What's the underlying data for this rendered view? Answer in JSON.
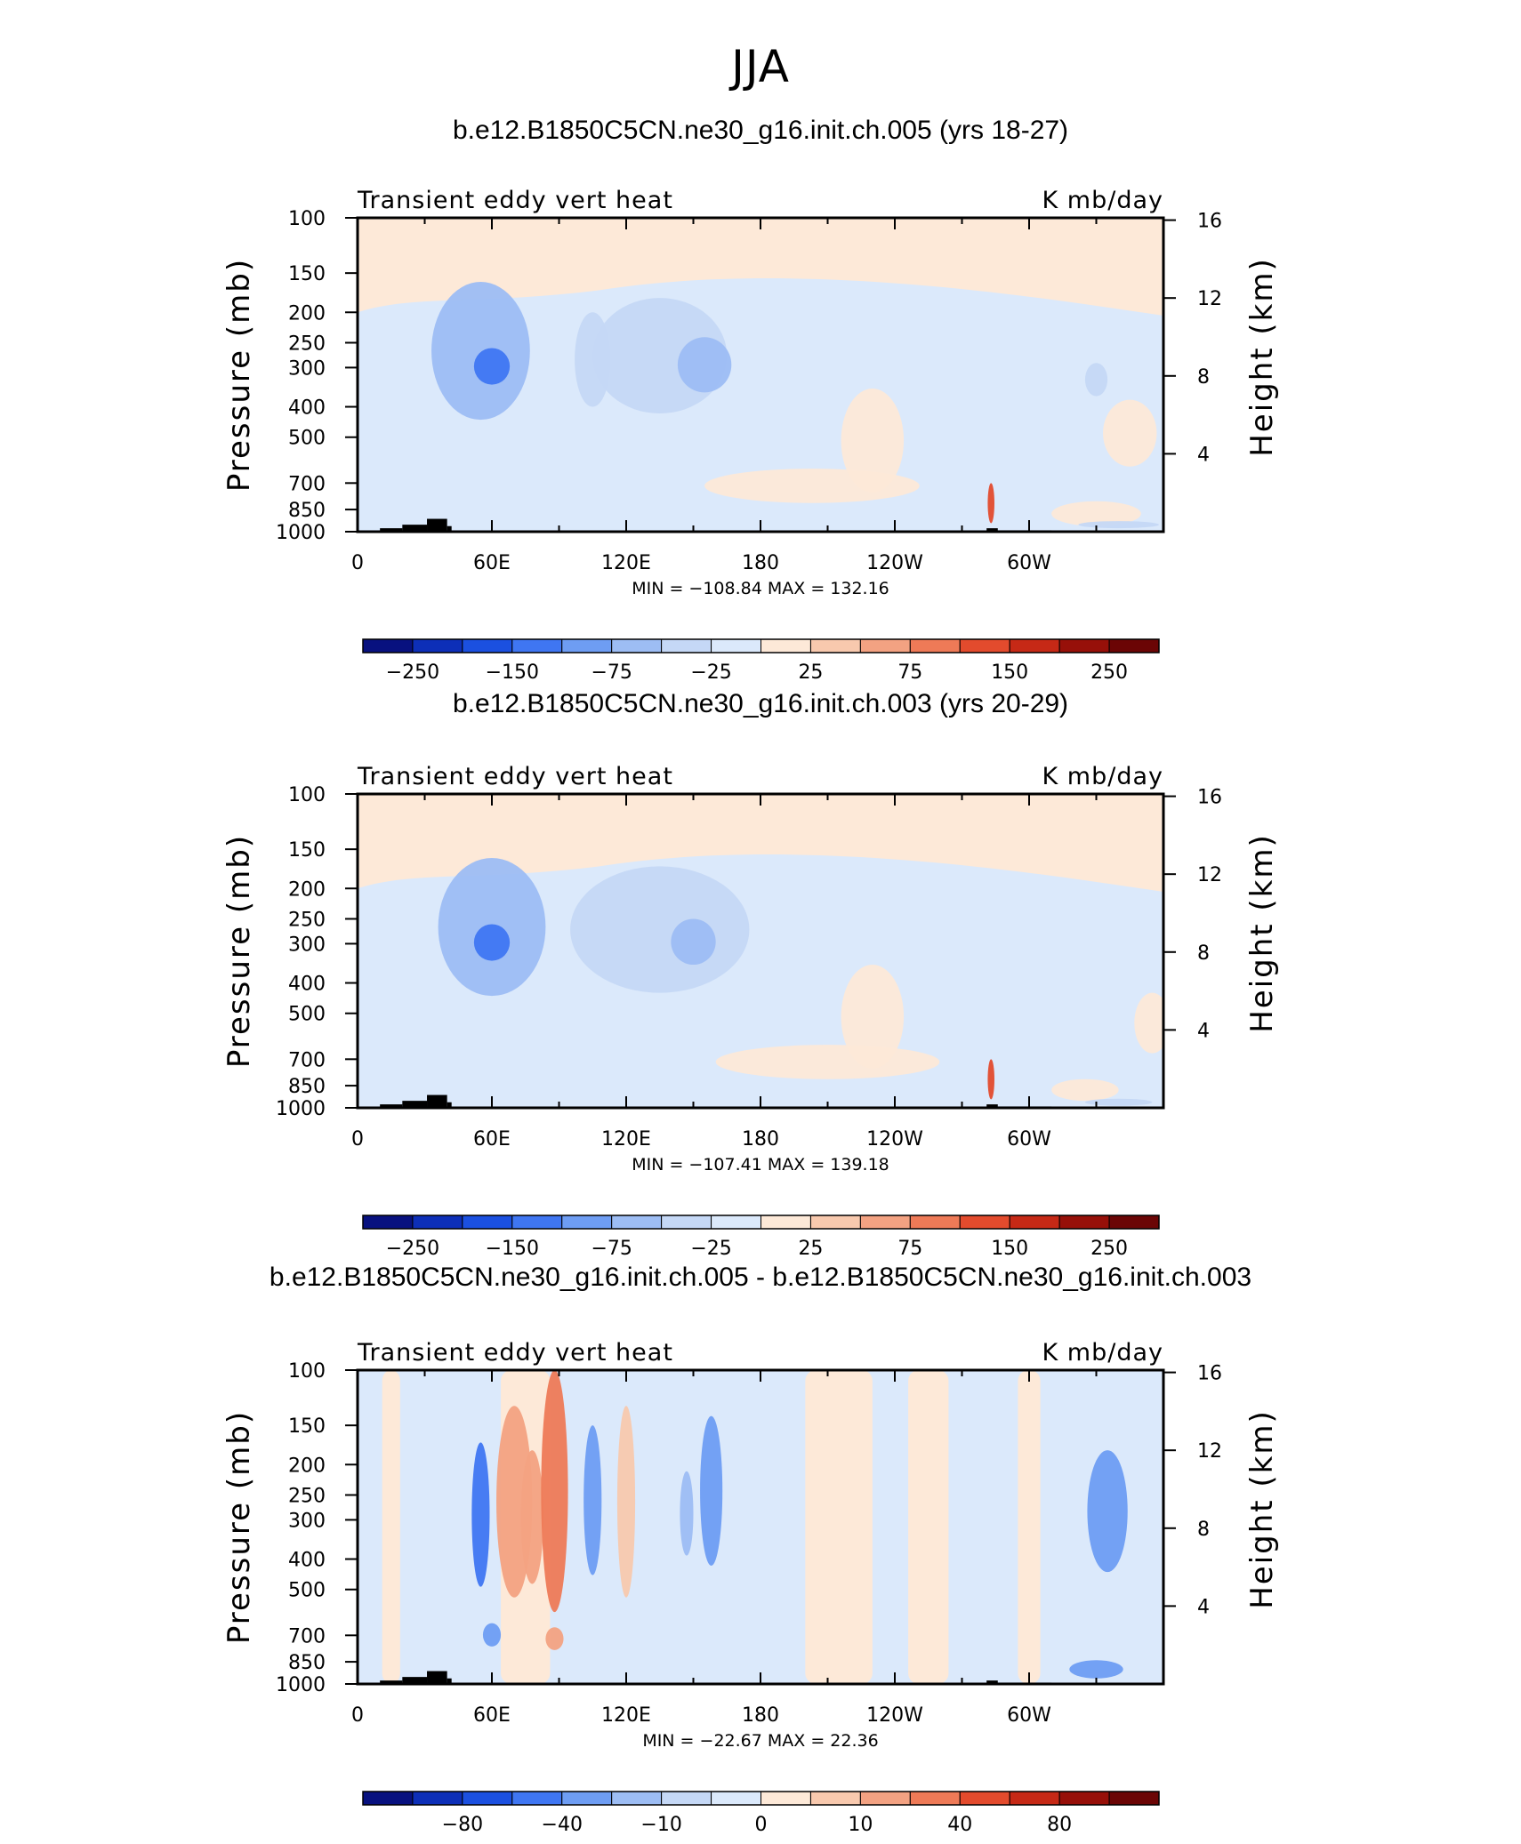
{
  "figure": {
    "title": "JJA"
  },
  "palettes": {
    "abs": [
      "#08117f",
      "#0d2fb8",
      "#1b50e0",
      "#3f76f2",
      "#6e9df3",
      "#9dbdf4",
      "#c5d8f6",
      "#dbe9fb",
      "#fde9d8",
      "#f8c9ae",
      "#f3a282",
      "#ee7a57",
      "#e34b2d",
      "#c62916",
      "#971009",
      "#6b0505"
    ],
    "diff": [
      "#08117f",
      "#0d2fb8",
      "#1b50e0",
      "#3f76f2",
      "#6e9df3",
      "#9dbdf4",
      "#c5d8f6",
      "#dbe9fb",
      "#fde9d8",
      "#f8c9ae",
      "#f3a282",
      "#ee7a57",
      "#e34b2d",
      "#c62916",
      "#971009",
      "#6b0505"
    ]
  },
  "chart_data": [
    {
      "type": "heatmap",
      "title": "b.e12.B1850C5CN.ne30_g16.init.ch.005 (yrs 18-27)",
      "left_label": "Transient eddy vert heat",
      "right_label": "K mb/day",
      "ylabel": "Pressure (mb)",
      "ylabel_right": "Height (km)",
      "x_ticks": [
        "0",
        "60E",
        "120E",
        "180",
        "120W",
        "60W"
      ],
      "x_tick_lons": [
        0,
        60,
        120,
        180,
        240,
        300
      ],
      "y_ticks": [
        100,
        150,
        200,
        250,
        300,
        400,
        500,
        700,
        850,
        1000
      ],
      "y_ticks_right": [
        16,
        12,
        8,
        4
      ],
      "ylim": [
        1000,
        100
      ],
      "xlim": [
        0,
        360
      ],
      "minmax": "MIN = −108.84   MAX = 132.16",
      "colorbar_labels": [
        "−250",
        "−150",
        "−75",
        "−25",
        "25",
        "75",
        "150",
        "250"
      ],
      "palette": "abs",
      "features": [
        {
          "lon": 55,
          "p": 300,
          "value": -70,
          "rx": 22,
          "ry": 140
        },
        {
          "lon": 60,
          "p": 300,
          "value": -108.84,
          "rx": 8,
          "ry": 40
        },
        {
          "lon": 105,
          "p": 300,
          "value": -30,
          "rx": 8,
          "ry": 100
        },
        {
          "lon": 135,
          "p": 300,
          "value": -40,
          "rx": 30,
          "ry": 120
        },
        {
          "lon": 155,
          "p": 300,
          "value": -60,
          "rx": 12,
          "ry": 60
        },
        {
          "lon": 203,
          "p": 720,
          "value": 20,
          "rx": 48,
          "ry": 90
        },
        {
          "lon": 230,
          "p": 550,
          "value": 18,
          "rx": 14,
          "ry": 200
        },
        {
          "lon": 283,
          "p": 820,
          "value": 132.16,
          "rx": 1.5,
          "ry": 120
        },
        {
          "lon": 330,
          "p": 880,
          "value": 15,
          "rx": 20,
          "ry": 80
        },
        {
          "lon": 345,
          "p": 500,
          "value": 15,
          "rx": 12,
          "ry": 120
        },
        {
          "lon": 330,
          "p": 330,
          "value": -30,
          "rx": 5,
          "ry": 40
        },
        {
          "lon": 340,
          "p": 950,
          "value": -30,
          "rx": 18,
          "ry": 20
        }
      ],
      "topography": [
        {
          "lon0": 10,
          "lon1": 20,
          "p": 975
        },
        {
          "lon0": 20,
          "lon1": 31,
          "p": 950
        },
        {
          "lon0": 31,
          "lon1": 40,
          "p": 910
        },
        {
          "lon0": 40,
          "lon1": 42,
          "p": 960
        },
        {
          "lon0": 281,
          "lon1": 286,
          "p": 975
        },
        {
          "lon0": 286,
          "lon1": 310,
          "p": 990
        }
      ]
    },
    {
      "type": "heatmap",
      "title": "b.e12.B1850C5CN.ne30_g16.init.ch.003 (yrs 20-29)",
      "left_label": "Transient eddy vert heat",
      "right_label": "K mb/day",
      "ylabel": "Pressure (mb)",
      "ylabel_right": "Height (km)",
      "x_ticks": [
        "0",
        "60E",
        "120E",
        "180",
        "120W",
        "60W"
      ],
      "x_tick_lons": [
        0,
        60,
        120,
        180,
        240,
        300
      ],
      "y_ticks": [
        100,
        150,
        200,
        250,
        300,
        400,
        500,
        700,
        850,
        1000
      ],
      "y_ticks_right": [
        16,
        12,
        8,
        4
      ],
      "ylim": [
        1000,
        100
      ],
      "xlim": [
        0,
        360
      ],
      "minmax": "MIN = −107.41   MAX = 139.18",
      "colorbar_labels": [
        "−250",
        "−150",
        "−75",
        "−25",
        "25",
        "75",
        "150",
        "250"
      ],
      "palette": "abs",
      "features": [
        {
          "lon": 60,
          "p": 300,
          "value": -70,
          "rx": 24,
          "ry": 140
        },
        {
          "lon": 60,
          "p": 300,
          "value": -107.41,
          "rx": 8,
          "ry": 40
        },
        {
          "lon": 135,
          "p": 300,
          "value": -45,
          "rx": 40,
          "ry": 130
        },
        {
          "lon": 150,
          "p": 300,
          "value": -60,
          "rx": 10,
          "ry": 50
        },
        {
          "lon": 210,
          "p": 720,
          "value": 20,
          "rx": 50,
          "ry": 90
        },
        {
          "lon": 230,
          "p": 550,
          "value": 18,
          "rx": 14,
          "ry": 200
        },
        {
          "lon": 283,
          "p": 820,
          "value": 139.18,
          "rx": 1.5,
          "ry": 120
        },
        {
          "lon": 325,
          "p": 880,
          "value": 15,
          "rx": 15,
          "ry": 70
        },
        {
          "lon": 355,
          "p": 550,
          "value": 15,
          "rx": 8,
          "ry": 120
        },
        {
          "lon": 340,
          "p": 960,
          "value": -30,
          "rx": 15,
          "ry": 15
        }
      ],
      "topography": [
        {
          "lon0": 10,
          "lon1": 20,
          "p": 975
        },
        {
          "lon0": 20,
          "lon1": 31,
          "p": 950
        },
        {
          "lon0": 31,
          "lon1": 40,
          "p": 910
        },
        {
          "lon0": 40,
          "lon1": 42,
          "p": 960
        },
        {
          "lon0": 281,
          "lon1": 286,
          "p": 975
        },
        {
          "lon0": 286,
          "lon1": 310,
          "p": 990
        }
      ]
    },
    {
      "type": "heatmap",
      "title": "b.e12.B1850C5CN.ne30_g16.init.ch.005 - b.e12.B1850C5CN.ne30_g16.init.ch.003",
      "left_label": "Transient eddy vert heat",
      "right_label": "K mb/day",
      "ylabel": "Pressure (mb)",
      "ylabel_right": "Height (km)",
      "x_ticks": [
        "0",
        "60E",
        "120E",
        "180",
        "120W",
        "60W"
      ],
      "x_tick_lons": [
        0,
        60,
        120,
        180,
        240,
        300
      ],
      "y_ticks": [
        100,
        150,
        200,
        250,
        300,
        400,
        500,
        700,
        850,
        1000
      ],
      "y_ticks_right": [
        16,
        12,
        8,
        4
      ],
      "ylim": [
        1000,
        100
      ],
      "xlim": [
        0,
        360
      ],
      "minmax": "MIN = −22.67   MAX =   22.36",
      "colorbar_labels": [
        "−80",
        "−40",
        "−10",
        "0",
        "10",
        "40",
        "80"
      ],
      "palette": "diff",
      "features": [
        {
          "lon": 55,
          "p": 330,
          "value": -22.67,
          "rx": 4,
          "ry": 160
        },
        {
          "lon": 70,
          "p": 330,
          "value": 15,
          "rx": 8,
          "ry": 200
        },
        {
          "lon": 78,
          "p": 330,
          "value": 18,
          "rx": 5,
          "ry": 150
        },
        {
          "lon": 88,
          "p": 340,
          "value": 22.36,
          "rx": 6,
          "ry": 250
        },
        {
          "lon": 105,
          "p": 300,
          "value": -12,
          "rx": 4,
          "ry": 150
        },
        {
          "lon": 120,
          "p": 330,
          "value": 9,
          "rx": 4,
          "ry": 200
        },
        {
          "lon": 158,
          "p": 280,
          "value": -15,
          "rx": 5,
          "ry": 140
        },
        {
          "lon": 147,
          "p": 300,
          "value": -10,
          "rx": 3,
          "ry": 90
        },
        {
          "lon": 335,
          "p": 310,
          "value": -18,
          "rx": 9,
          "ry": 130
        },
        {
          "lon": 330,
          "p": 900,
          "value": -12,
          "rx": 12,
          "ry": 60
        },
        {
          "lon": 60,
          "p": 700,
          "value": -12,
          "rx": 4,
          "ry": 60
        },
        {
          "lon": 88,
          "p": 720,
          "value": 16,
          "rx": 4,
          "ry": 60
        }
      ],
      "topography": [
        {
          "lon0": 10,
          "lon1": 20,
          "p": 975
        },
        {
          "lon0": 20,
          "lon1": 31,
          "p": 950
        },
        {
          "lon0": 31,
          "lon1": 40,
          "p": 910
        },
        {
          "lon0": 40,
          "lon1": 42,
          "p": 960
        },
        {
          "lon0": 281,
          "lon1": 286,
          "p": 975
        },
        {
          "lon0": 286,
          "lon1": 310,
          "p": 990
        }
      ]
    }
  ]
}
